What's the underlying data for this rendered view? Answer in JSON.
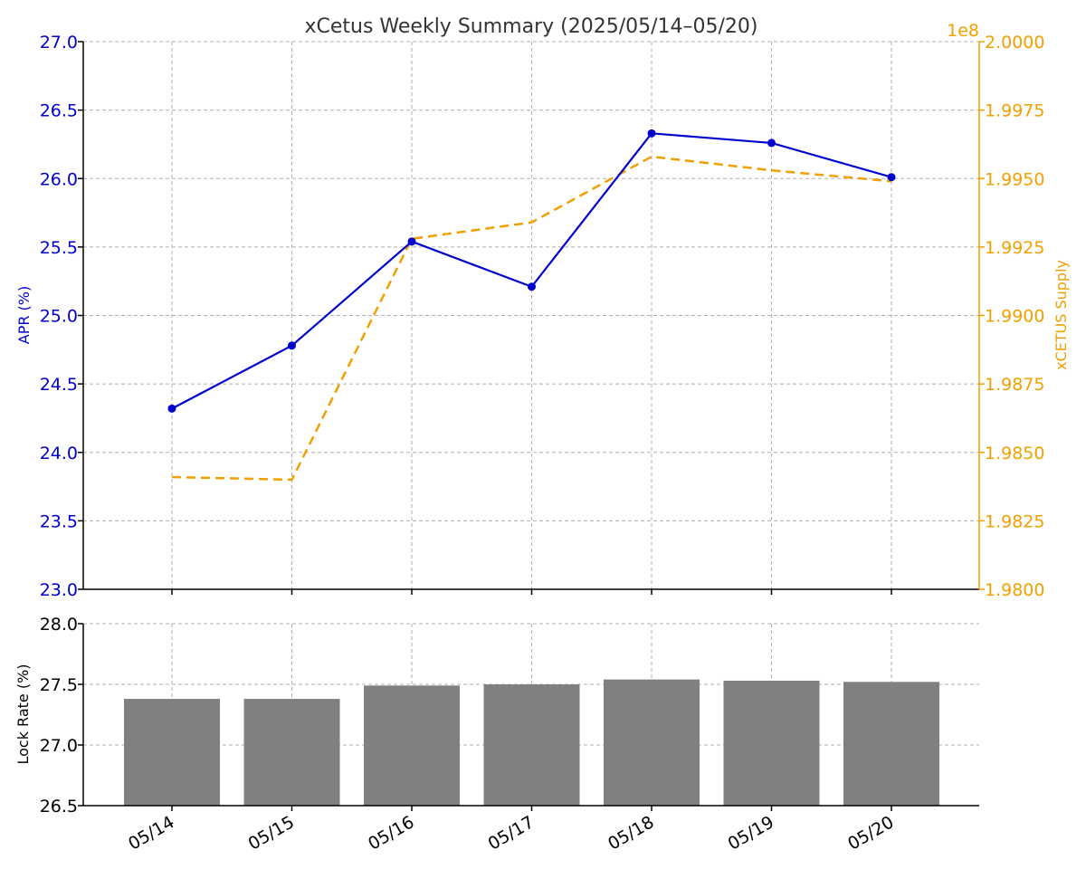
{
  "colors": {
    "apr": "#0000cc",
    "supply": "#f0a000",
    "bar": "#808080",
    "axis": "#000000",
    "text": "#333333"
  },
  "chart_data": [
    {
      "type": "line",
      "title": "xCetus Weekly Summary (2025/05/14–05/20)",
      "categories": [
        "05/14",
        "05/15",
        "05/16",
        "05/17",
        "05/18",
        "05/19",
        "05/20"
      ],
      "ylabel_left": "APR (%)",
      "ylabel_right": "xCETUS Supply",
      "ylim_left": [
        23.0,
        27.0
      ],
      "yticks_left": [
        "23.0",
        "23.5",
        "24.0",
        "24.5",
        "25.0",
        "25.5",
        "26.0",
        "26.5",
        "27.0"
      ],
      "ylim_right": [
        1.98,
        2.0
      ],
      "yticks_right": [
        "1.9800",
        "1.9825",
        "1.9850",
        "1.9875",
        "1.9900",
        "1.9925",
        "1.9950",
        "1.9975",
        "2.0000"
      ],
      "right_axis_multiplier": "1e8",
      "grid": true,
      "series": [
        {
          "name": "",
          "axis": "left",
          "style": "solid-markers",
          "color": "#0000cc",
          "values": [
            24.32,
            24.78,
            25.54,
            25.21,
            26.33,
            26.26,
            26.01
          ]
        },
        {
          "name": "",
          "axis": "right",
          "style": "dashed",
          "color": "#f0a000",
          "values": [
            1.9841,
            1.984,
            1.9928,
            1.9934,
            1.9958,
            1.9953,
            1.9949
          ]
        }
      ]
    },
    {
      "type": "bar",
      "categories": [
        "05/14",
        "05/15",
        "05/16",
        "05/17",
        "05/18",
        "05/19",
        "05/20"
      ],
      "ylabel": "Lock Rate (%)",
      "ylim": [
        26.5,
        28.0
      ],
      "yticks": [
        "26.5",
        "27.0",
        "27.5",
        "28.0"
      ],
      "grid": true,
      "color": "#808080",
      "values": [
        27.38,
        27.38,
        27.49,
        27.5,
        27.54,
        27.53,
        27.52
      ]
    }
  ]
}
